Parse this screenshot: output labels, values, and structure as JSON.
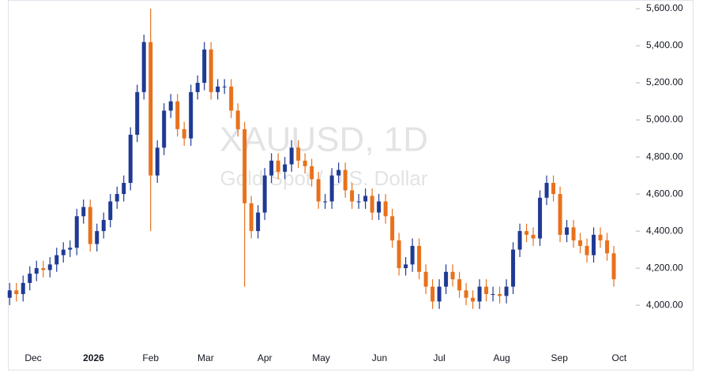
{
  "chart_data": {
    "type": "candlestick",
    "title": "XAUUSD, 1D",
    "subtitle": "Gold Spot / U.S. Dollar",
    "up_color": "#1f3a93",
    "down_color": "#e8711c",
    "open": [
      4040,
      4080,
      4060,
      4120,
      4170,
      4200,
      4190,
      4220,
      4270,
      4300,
      4310,
      4480,
      4530,
      4330,
      4400,
      4460,
      4560,
      4600,
      4660,
      4920,
      5150,
      5420,
      4700,
      4850,
      5050,
      5100,
      4950,
      4900,
      5150,
      5200,
      5380,
      5150,
      5180,
      5180,
      5050,
      4950,
      4550,
      4400,
      4500,
      4700,
      4780,
      4720,
      4760,
      4850,
      4780,
      4750,
      4680,
      4560,
      4560,
      4700,
      4730,
      4620,
      4560,
      4560,
      4590,
      4500,
      4560,
      4480,
      4350,
      4200,
      4220,
      4320,
      4180,
      4100,
      4020,
      4100,
      4180,
      4140,
      4080,
      4040,
      4020,
      4100,
      4060,
      4060,
      4050,
      4100,
      4300,
      4400,
      4380,
      4360,
      4580,
      4660,
      4600,
      4380,
      4420,
      4350,
      4320,
      4270,
      4380,
      4350,
      4280
    ],
    "high": [
      4120,
      4120,
      4160,
      4210,
      4240,
      4240,
      4260,
      4310,
      4340,
      4350,
      4520,
      4570,
      4570,
      4440,
      4500,
      4600,
      4640,
      4700,
      4960,
      5190,
      5460,
      5600,
      4890,
      5090,
      5140,
      5140,
      4990,
      5190,
      5240,
      5420,
      5420,
      5220,
      5220,
      5220,
      5090,
      4990,
      4590,
      4540,
      4740,
      4820,
      4820,
      4800,
      4890,
      4890,
      4820,
      4790,
      4720,
      4600,
      4740,
      4770,
      4770,
      4660,
      4600,
      4630,
      4630,
      4600,
      4600,
      4520,
      4390,
      4260,
      4360,
      4360,
      4220,
      4140,
      4140,
      4220,
      4220,
      4180,
      4120,
      4080,
      4140,
      4140,
      4100,
      4100,
      4140,
      4340,
      4440,
      4440,
      4420,
      4620,
      4700,
      4700,
      4640,
      4460,
      4460,
      4390,
      4360,
      4420,
      4420,
      4390,
      4320
    ],
    "low": [
      4000,
      4020,
      4020,
      4080,
      4130,
      4150,
      4150,
      4180,
      4230,
      4260,
      4270,
      4440,
      4290,
      4290,
      4360,
      4420,
      4520,
      4560,
      4620,
      4880,
      5110,
      4400,
      4660,
      4810,
      5010,
      4910,
      4860,
      4860,
      5110,
      5160,
      5110,
      5110,
      5140,
      5010,
      4910,
      4100,
      4360,
      4360,
      4460,
      4660,
      4680,
      4680,
      4720,
      4740,
      4710,
      4640,
      4520,
      4520,
      4520,
      4660,
      4580,
      4520,
      4520,
      4520,
      4460,
      4460,
      4440,
      4310,
      4160,
      4160,
      4180,
      4140,
      4060,
      3980,
      3980,
      4060,
      4100,
      4040,
      4000,
      3980,
      3980,
      4020,
      4020,
      4010,
      4010,
      4060,
      4260,
      4340,
      4320,
      4320,
      4540,
      4560,
      4340,
      4340,
      4310,
      4280,
      4230,
      4230,
      4310,
      4240,
      4100
    ],
    "close": [
      4080,
      4060,
      4120,
      4170,
      4200,
      4190,
      4220,
      4270,
      4300,
      4310,
      4480,
      4530,
      4330,
      4400,
      4460,
      4560,
      4600,
      4660,
      4920,
      5150,
      5420,
      4700,
      4850,
      5050,
      5100,
      4950,
      4900,
      5150,
      5200,
      5380,
      5150,
      5180,
      5180,
      5050,
      4950,
      4550,
      4400,
      4500,
      4700,
      4780,
      4720,
      4760,
      4850,
      4780,
      4750,
      4680,
      4560,
      4560,
      4700,
      4730,
      4620,
      4560,
      4560,
      4590,
      4500,
      4560,
      4480,
      4350,
      4200,
      4220,
      4320,
      4180,
      4100,
      4020,
      4100,
      4180,
      4140,
      4080,
      4040,
      4020,
      4100,
      4060,
      4060,
      4050,
      4100,
      4300,
      4400,
      4380,
      4360,
      4580,
      4660,
      4600,
      4380,
      4420,
      4350,
      4320,
      4270,
      4380,
      4350,
      4280,
      4140
    ],
    "xlim": [
      -0.5,
      92.7
    ],
    "xticks": [
      {
        "value": 3.5,
        "label": "Dec"
      },
      {
        "value": 12.5,
        "label": "2026"
      },
      {
        "value": 21,
        "label": "Feb"
      },
      {
        "value": 29.2,
        "label": "Mar"
      },
      {
        "value": 38,
        "label": "Apr"
      },
      {
        "value": 46.4,
        "label": "May"
      },
      {
        "value": 55.1,
        "label": "Jun"
      },
      {
        "value": 64,
        "label": "Jul"
      },
      {
        "value": 73.3,
        "label": "Aug"
      },
      {
        "value": 81.9,
        "label": "Sep"
      },
      {
        "value": 90.8,
        "label": "Oct"
      }
    ],
    "ylim": [
      3775,
      5647
    ],
    "yticks": [
      {
        "value": 4000,
        "label": "4,000.00"
      },
      {
        "value": 4200,
        "label": "4,200.00"
      },
      {
        "value": 4400,
        "label": "4,400.00"
      },
      {
        "value": 4600,
        "label": "4,600.00"
      },
      {
        "value": 4800,
        "label": "4,800.00"
      },
      {
        "value": 5000,
        "label": "5,000.00"
      },
      {
        "value": 5200,
        "label": "5,200.00"
      },
      {
        "value": 5400,
        "label": "5,400.00"
      },
      {
        "value": 5600,
        "label": "5,600.00"
      }
    ],
    "y_axis_side": "right"
  }
}
